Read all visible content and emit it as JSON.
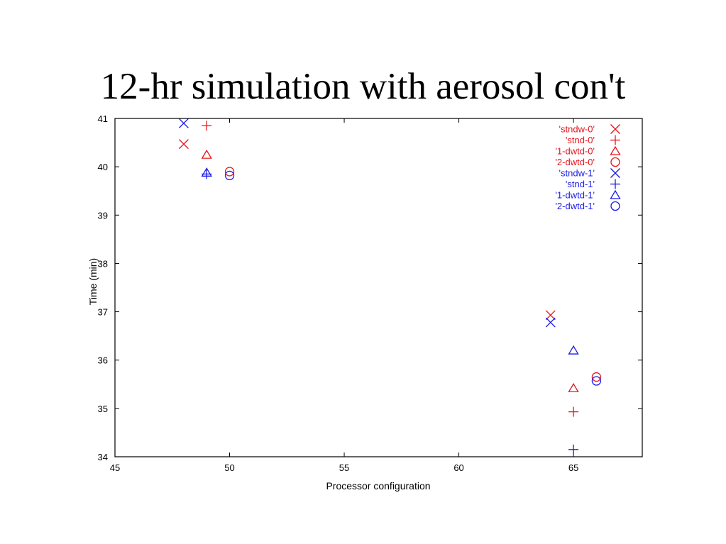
{
  "slide": {
    "title": "12-hr simulation with aerosol con't"
  },
  "chart_data": {
    "type": "scatter",
    "title": "",
    "xlabel": "Processor configuration",
    "ylabel": "Time (min)",
    "xlim": [
      45,
      68
    ],
    "ylim": [
      34,
      41
    ],
    "xticks": [
      45,
      50,
      55,
      60,
      65
    ],
    "yticks": [
      34,
      35,
      36,
      37,
      38,
      39,
      40,
      41
    ],
    "grid": false,
    "legend_position": "top-right",
    "series": [
      {
        "name": "'stndw-0'",
        "marker": "x",
        "color": "#e8141c",
        "points": [
          [
            48,
            40.47
          ],
          [
            64,
            36.93
          ]
        ]
      },
      {
        "name": "'stnd-0'",
        "marker": "plus",
        "color": "#e8141c",
        "points": [
          [
            49,
            40.85
          ],
          [
            65,
            34.93
          ]
        ]
      },
      {
        "name": "'1-dwtd-0'",
        "marker": "triangle",
        "color": "#e8141c",
        "points": [
          [
            49,
            40.25
          ],
          [
            65,
            35.42
          ]
        ]
      },
      {
        "name": "'2-dwtd-0'",
        "marker": "circle",
        "color": "#e8141c",
        "points": [
          [
            50,
            39.9
          ],
          [
            66,
            35.65
          ]
        ]
      },
      {
        "name": "'stndw-1'",
        "marker": "x",
        "color": "#1a1ae6",
        "points": [
          [
            48,
            40.9
          ],
          [
            64,
            36.78
          ]
        ]
      },
      {
        "name": "'stnd-1'",
        "marker": "plus",
        "color": "#1a1ae6",
        "points": [
          [
            49,
            39.85
          ],
          [
            65,
            34.15
          ]
        ]
      },
      {
        "name": "'1-dwtd-1'",
        "marker": "triangle",
        "color": "#1a1ae6",
        "points": [
          [
            49,
            39.88
          ],
          [
            65,
            36.2
          ]
        ]
      },
      {
        "name": "'2-dwtd-1'",
        "marker": "circle",
        "color": "#1a1ae6",
        "points": [
          [
            50,
            39.82
          ],
          [
            66,
            35.57
          ]
        ]
      }
    ]
  }
}
